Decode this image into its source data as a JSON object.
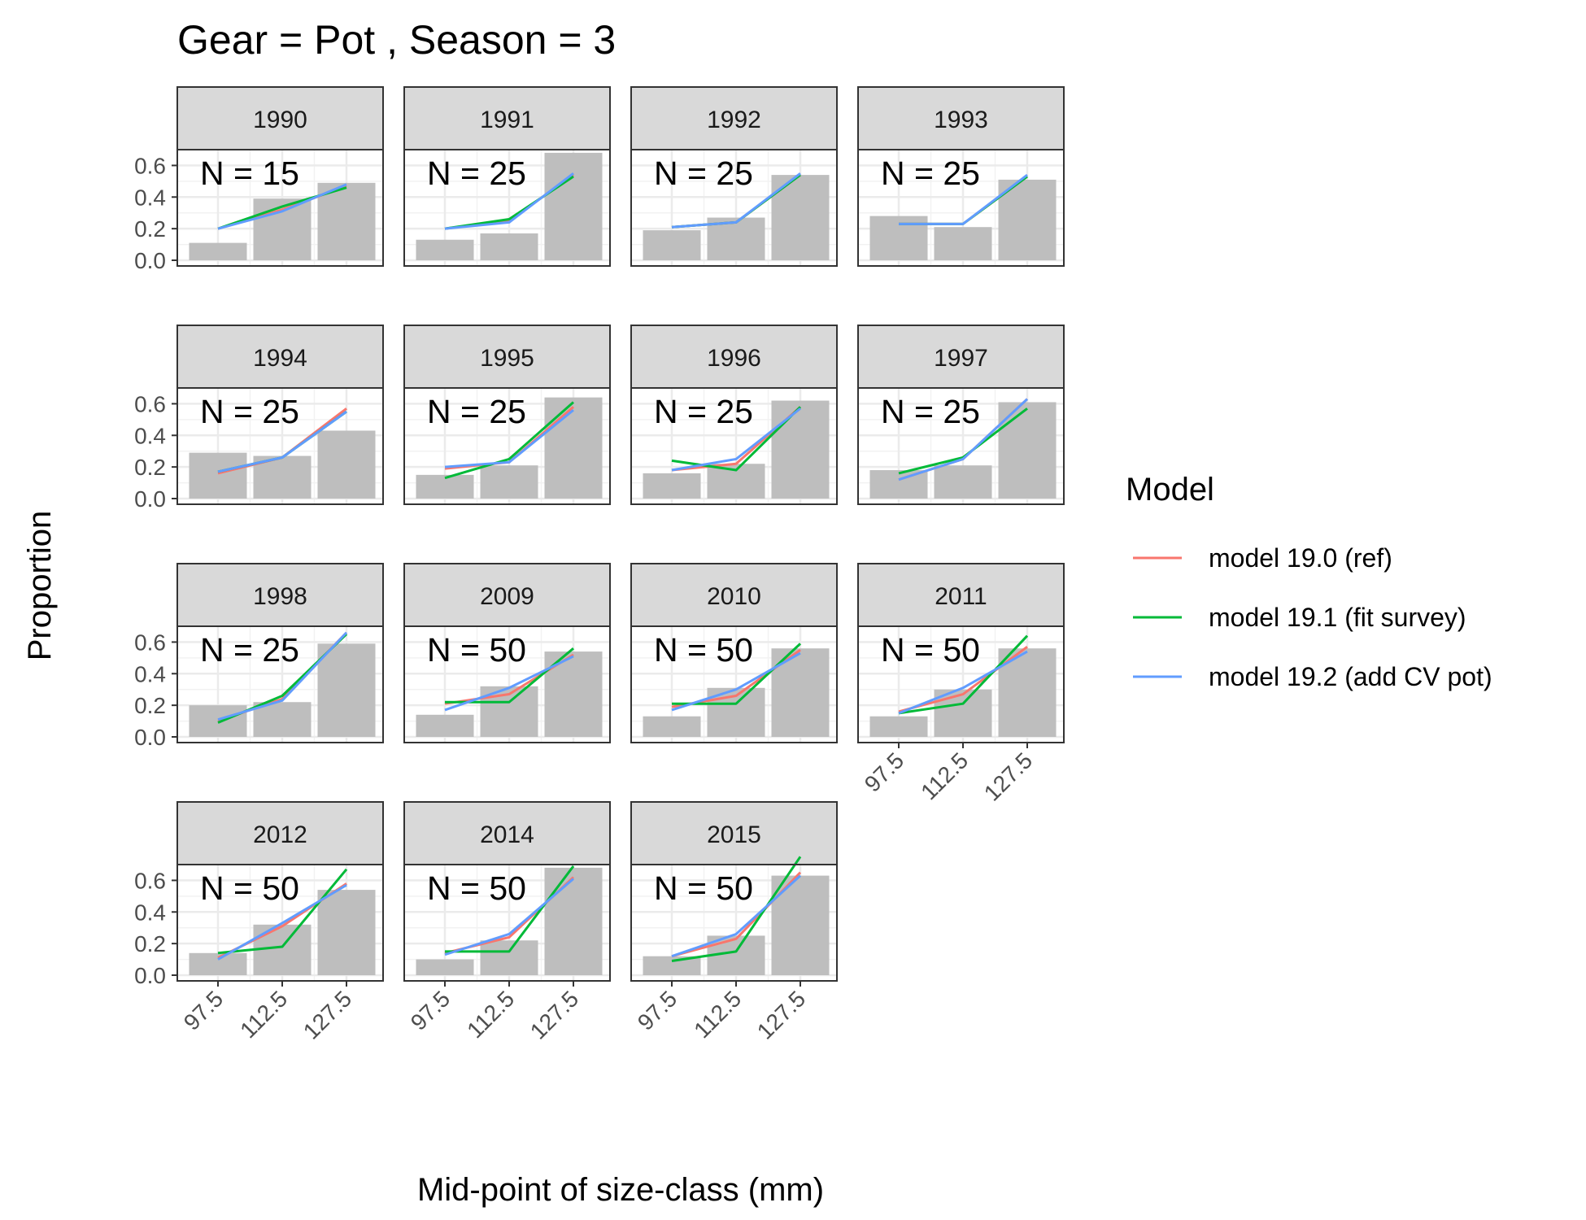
{
  "chart_data": {
    "type": "bar",
    "title": "Gear = Pot , Season = 3",
    "xlabel": "Mid-point of size-class (mm)",
    "ylabel": "Proportion",
    "categories": [
      "97.5",
      "112.5",
      "127.5"
    ],
    "y_ticks": [
      "0.0",
      "0.2",
      "0.4",
      "0.6"
    ],
    "ylim": [
      0,
      0.7
    ],
    "grid": true,
    "legend_position": "right",
    "legend": {
      "title": "Model",
      "entries": [
        {
          "name": "model 19.0 (ref)",
          "color": "#F8766D"
        },
        {
          "name": "model 19.1 (fit survey)",
          "color": "#00BA38"
        },
        {
          "name": "model 19.2 (add CV pot)",
          "color": "#619CFF"
        }
      ]
    },
    "observed_color": "#bebebe",
    "panels": [
      {
        "year": "1990",
        "n_label": "N = 15",
        "observed": [
          0.11,
          0.39,
          0.49
        ],
        "series": [
          [
            0.2,
            0.32,
            0.47
          ],
          [
            0.2,
            0.34,
            0.46
          ],
          [
            0.2,
            0.31,
            0.48
          ]
        ]
      },
      {
        "year": "1991",
        "n_label": "N = 25",
        "observed": [
          0.13,
          0.17,
          0.68
        ],
        "series": [
          [
            0.2,
            0.25,
            0.54
          ],
          [
            0.2,
            0.26,
            0.53
          ],
          [
            0.2,
            0.24,
            0.55
          ]
        ]
      },
      {
        "year": "1992",
        "n_label": "N = 25",
        "observed": [
          0.19,
          0.27,
          0.54
        ],
        "series": [
          [
            0.21,
            0.24,
            0.54
          ],
          [
            0.21,
            0.24,
            0.54
          ],
          [
            0.21,
            0.24,
            0.55
          ]
        ]
      },
      {
        "year": "1993",
        "n_label": "N = 25",
        "observed": [
          0.28,
          0.21,
          0.51
        ],
        "series": [
          [
            0.23,
            0.23,
            0.53
          ],
          [
            0.23,
            0.23,
            0.53
          ],
          [
            0.23,
            0.23,
            0.54
          ]
        ]
      },
      {
        "year": "1994",
        "n_label": "N = 25",
        "observed": [
          0.29,
          0.27,
          0.43
        ],
        "series": [
          [
            0.16,
            0.26,
            0.57
          ],
          [
            0.17,
            0.26,
            0.55
          ],
          [
            0.17,
            0.26,
            0.55
          ]
        ]
      },
      {
        "year": "1995",
        "n_label": "N = 25",
        "observed": [
          0.15,
          0.21,
          0.64
        ],
        "series": [
          [
            0.19,
            0.23,
            0.58
          ],
          [
            0.13,
            0.25,
            0.61
          ],
          [
            0.2,
            0.23,
            0.56
          ]
        ]
      },
      {
        "year": "1996",
        "n_label": "N = 25",
        "observed": [
          0.16,
          0.22,
          0.62
        ],
        "series": [
          [
            0.18,
            0.22,
            0.58
          ],
          [
            0.24,
            0.18,
            0.58
          ],
          [
            0.18,
            0.25,
            0.57
          ]
        ]
      },
      {
        "year": "1997",
        "n_label": "N = 25",
        "observed": [
          0.18,
          0.21,
          0.61
        ],
        "series": [
          [
            0.12,
            0.25,
            0.63
          ],
          [
            0.16,
            0.26,
            0.57
          ],
          [
            0.12,
            0.25,
            0.63
          ]
        ]
      },
      {
        "year": "1998",
        "n_label": "N = 25",
        "observed": [
          0.2,
          0.22,
          0.59
        ],
        "series": [
          [
            0.1,
            0.24,
            0.66
          ],
          [
            0.09,
            0.26,
            0.65
          ],
          [
            0.11,
            0.23,
            0.66
          ]
        ]
      },
      {
        "year": "2009",
        "n_label": "N = 50",
        "observed": [
          0.14,
          0.32,
          0.54
        ],
        "series": [
          [
            0.21,
            0.27,
            0.52
          ],
          [
            0.22,
            0.22,
            0.56
          ],
          [
            0.17,
            0.31,
            0.51
          ]
        ]
      },
      {
        "year": "2010",
        "n_label": "N = 50",
        "observed": [
          0.13,
          0.31,
          0.56
        ],
        "series": [
          [
            0.19,
            0.26,
            0.55
          ],
          [
            0.21,
            0.21,
            0.59
          ],
          [
            0.17,
            0.3,
            0.53
          ]
        ]
      },
      {
        "year": "2011",
        "n_label": "N = 50",
        "observed": [
          0.13,
          0.3,
          0.56
        ],
        "series": [
          [
            0.16,
            0.27,
            0.57
          ],
          [
            0.15,
            0.21,
            0.64
          ],
          [
            0.15,
            0.31,
            0.54
          ]
        ]
      },
      {
        "year": "2012",
        "n_label": "N = 50",
        "observed": [
          0.14,
          0.32,
          0.54
        ],
        "series": [
          [
            0.11,
            0.31,
            0.58
          ],
          [
            0.14,
            0.18,
            0.67
          ],
          [
            0.1,
            0.33,
            0.57
          ]
        ]
      },
      {
        "year": "2014",
        "n_label": "N = 50",
        "observed": [
          0.1,
          0.22,
          0.68
        ],
        "series": [
          [
            0.14,
            0.24,
            0.62
          ],
          [
            0.15,
            0.15,
            0.69
          ],
          [
            0.13,
            0.26,
            0.61
          ]
        ]
      },
      {
        "year": "2015",
        "n_label": "N = 50",
        "observed": [
          0.12,
          0.25,
          0.63
        ],
        "series": [
          [
            0.12,
            0.23,
            0.65
          ],
          [
            0.09,
            0.15,
            0.75
          ],
          [
            0.12,
            0.26,
            0.63
          ]
        ]
      }
    ]
  }
}
